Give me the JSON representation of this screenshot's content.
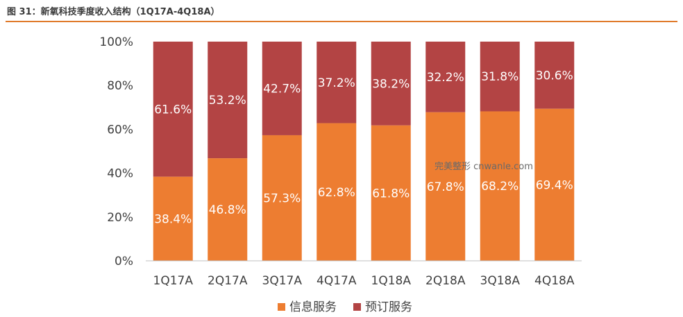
{
  "figure_title": "图 31：新氧科技季度收入结构（1Q17A-4Q18A）",
  "watermark": "完美整形 cnwanle.com",
  "colors": {
    "accent_rule": "#e07a2a",
    "series1": "#ed7d31",
    "series2": "#b34444"
  },
  "chart_data": {
    "type": "bar",
    "stacked": true,
    "percent": true,
    "categories": [
      "1Q17A",
      "2Q17A",
      "3Q17A",
      "4Q17A",
      "1Q18A",
      "2Q18A",
      "3Q18A",
      "4Q18A"
    ],
    "series": [
      {
        "name": "信息服务",
        "values": [
          38.4,
          46.8,
          57.3,
          62.8,
          61.8,
          67.8,
          68.2,
          69.4
        ],
        "labels": [
          "38.4%",
          "46.8%",
          "57.3%",
          "62.8%",
          "61.8%",
          "67.8%",
          "68.2%",
          "69.4%"
        ]
      },
      {
        "name": "预订服务",
        "values": [
          61.6,
          53.2,
          42.7,
          37.2,
          38.2,
          32.2,
          31.8,
          30.6
        ],
        "labels": [
          "61.6%",
          "53.2%",
          "42.7%",
          "37.2%",
          "38.2%",
          "32.2%",
          "31.8%",
          "30.6%"
        ]
      }
    ],
    "ylim": [
      0,
      100
    ],
    "yticks": [
      0,
      20,
      40,
      60,
      80,
      100
    ],
    "ytick_labels": [
      "0%",
      "20%",
      "40%",
      "60%",
      "80%",
      "100%"
    ],
    "legend_position": "bottom",
    "grid": false
  }
}
